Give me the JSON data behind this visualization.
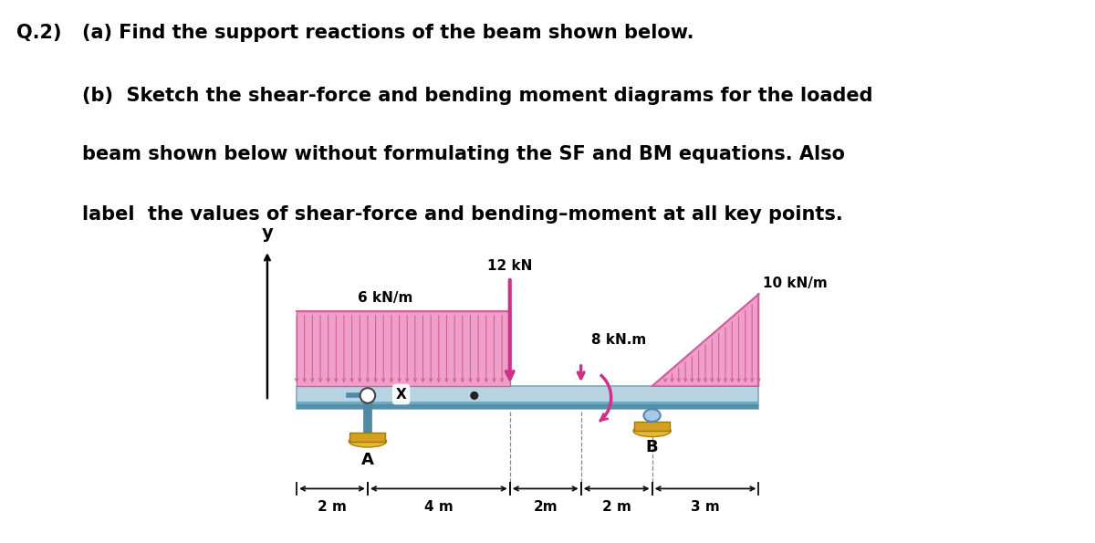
{
  "bg": "#ffffff",
  "title_lines": [
    [
      "Q.2)",
      "(a) Find the support reactions of the beam shown below."
    ],
    [
      "",
      "(b)  Sketch the shear-force and bending moment diagrams for the loaded"
    ],
    [
      "",
      "beam shown below without formulating the SF and BM equations. Also"
    ],
    [
      "",
      "label  the values of shear-force and bending–moment at all key points."
    ]
  ],
  "udl1_label": "6 kN/m",
  "udl2_label": "10 kN/m",
  "point_load_label": "12 kN",
  "moment_label": "8 kN.m",
  "support_A_label": "A",
  "support_B_label": "B",
  "y_label": "y",
  "x_label": "X",
  "dim_labels": [
    "2 m",
    "4 m",
    "2m",
    "2 m",
    "3 m"
  ],
  "beam_color_top": "#b8d4e0",
  "beam_color_bot": "#5a9ab5",
  "beam_stroke": "#7ab0c5",
  "udl_fill": "#f0a0c8",
  "udl_line": "#d060a0",
  "udl_arrow": "#d060a0",
  "support_pin_fill": "#c8dce8",
  "support_rod": "#5a88aa",
  "support_base": "#d4a020",
  "support_ground": "#e8c840",
  "moment_color": "#cc3388",
  "point_load_color": "#cc3388",
  "dim_color": "#111111"
}
